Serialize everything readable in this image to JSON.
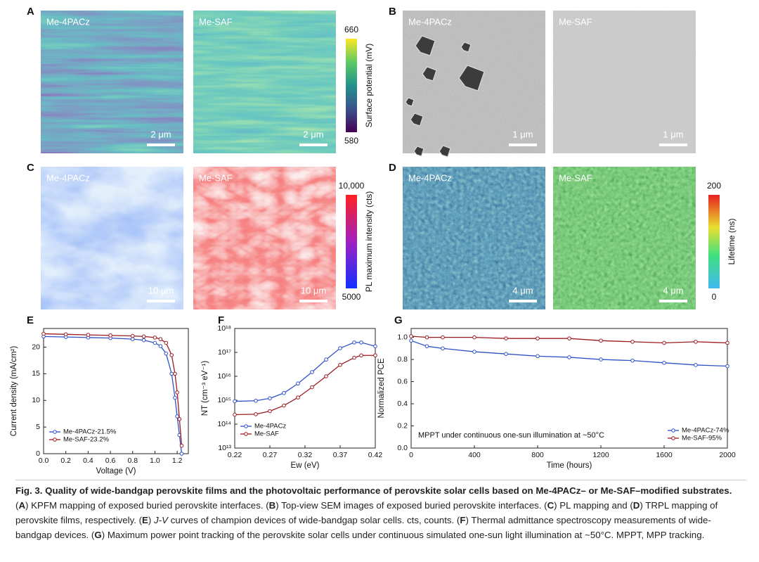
{
  "panels": [
    {
      "letter": "A",
      "images": [
        {
          "label": "Me-4PACz",
          "scale": "2 μm"
        },
        {
          "label": "Me-SAF",
          "scale": "2 μm"
        }
      ],
      "colorbar": {
        "top": "660",
        "bottom": "580",
        "title": "Surface potential (mV)"
      }
    },
    {
      "letter": "B",
      "images": [
        {
          "label": "Me-4PACz",
          "scale": "1 μm"
        },
        {
          "label": "Me-SAF",
          "scale": "1 μm"
        }
      ]
    },
    {
      "letter": "C",
      "images": [
        {
          "label": "Me-4PACz",
          "scale": "10 μm"
        },
        {
          "label": "Me-SAF",
          "scale": "10 μm"
        }
      ],
      "colorbar": {
        "top": "10,000",
        "bottom": "5000",
        "title": "PL maximum intensity (cts)"
      }
    },
    {
      "letter": "D",
      "images": [
        {
          "label": "Me-4PACz",
          "scale": "4 μm"
        },
        {
          "label": "Me-SAF",
          "scale": "4 μm"
        }
      ],
      "colorbar": {
        "top": "200",
        "bottom": "0",
        "title": "Lifetime (ns)"
      }
    }
  ],
  "chart_data": [
    {
      "type": "line",
      "label": "E",
      "x_label": "Voltage (V)",
      "y_label": "Current density (mA/cm²)",
      "x": [
        0,
        0.2,
        0.4,
        0.6,
        0.8,
        0.9,
        1.0,
        1.05,
        1.1,
        1.15,
        1.18,
        1.2,
        1.22,
        1.24
      ],
      "series": [
        {
          "name": "Me-4PACz-21.5%",
          "color": "#2f52c8",
          "values": [
            22.0,
            21.9,
            21.8,
            21.7,
            21.5,
            21.3,
            20.8,
            20.2,
            18.8,
            15,
            10.5,
            7,
            3.5,
            0
          ]
        },
        {
          "name": "Me-SAF-23.2%",
          "color": "#9b1b22",
          "values": [
            22.5,
            22.4,
            22.3,
            22.2,
            22.1,
            22,
            21.8,
            21.5,
            20.8,
            18.5,
            15,
            11.5,
            6.5,
            1.5
          ]
        }
      ],
      "xlim": [
        0,
        1.3
      ],
      "xticks": [
        {
          "value": 0,
          "label": "0.0"
        },
        0.2,
        0.4,
        0.6,
        0.8,
        {
          "value": 1,
          "label": "1.0"
        },
        1.2
      ],
      "ylim": [
        0,
        23.5
      ],
      "yticks": [
        0,
        5,
        10,
        15,
        20
      ],
      "legend": "lower left"
    },
    {
      "type": "line",
      "label": "F",
      "x_label": "Ew (eV)",
      "y_label": "NT (cm⁻³ eV⁻¹)",
      "log_y": true,
      "x": [
        0.22,
        0.25,
        0.27,
        0.29,
        0.31,
        0.33,
        0.35,
        0.37,
        0.39,
        0.4,
        0.42
      ],
      "series": [
        {
          "name": "Me-4PACz",
          "color": "#2f52c8",
          "values": [
            900000000000000.0,
            950000000000000.0,
            1200000000000000.0,
            2000000000000000.0,
            5000000000000000.0,
            1.5e+16,
            5e+16,
            1.5e+17,
            2.6e+17,
            2.6e+17,
            1.8e+17
          ]
        },
        {
          "name": "Me-SAF",
          "color": "#9b1b22",
          "values": [
            250000000000000.0,
            260000000000000.0,
            350000000000000.0,
            600000000000000.0,
            1300000000000000.0,
            3500000000000000.0,
            1e+16,
            3e+16,
            6e+16,
            7.5e+16,
            7.5e+16
          ]
        }
      ],
      "xlim": [
        0.22,
        0.42
      ],
      "xticks": [
        0.22,
        0.27,
        0.32,
        0.37,
        0.42
      ],
      "ylim": [
        10000000000000.0,
        1e+18
      ],
      "yticks": [
        {
          "value": 10000000000000.0,
          "label": "10¹³"
        },
        {
          "value": 100000000000000.0,
          "label": "10¹⁴"
        },
        {
          "value": 1000000000000000.0,
          "label": "10¹⁵"
        },
        {
          "value": 1e+16,
          "label": "10¹⁶"
        },
        {
          "value": 1e+17,
          "label": "10¹⁷"
        },
        {
          "value": 1e+18,
          "label": "10¹⁸"
        }
      ],
      "legend": "lower left"
    },
    {
      "type": "line",
      "label": "G",
      "x_label": "Time (hours)",
      "y_label": "Normalized PCE",
      "annotation": "MPPT  under continuous one-sun illumination at ~50°C",
      "x": [
        0,
        100,
        200,
        400,
        600,
        800,
        1000,
        1200,
        1400,
        1600,
        1800,
        2000
      ],
      "series": [
        {
          "name": "Me-4PACz-74%",
          "color": "#2f52c8",
          "values": [
            0.97,
            0.92,
            0.9,
            0.87,
            0.85,
            0.83,
            0.82,
            0.8,
            0.79,
            0.77,
            0.75,
            0.74
          ]
        },
        {
          "name": "Me-SAF-95%",
          "color": "#9b1b22",
          "values": [
            1.01,
            1.0,
            1.0,
            1.0,
            0.99,
            0.99,
            0.99,
            0.97,
            0.96,
            0.95,
            0.96,
            0.95
          ]
        }
      ],
      "xlim": [
        0,
        2000
      ],
      "xticks": [
        0,
        400,
        800,
        1200,
        1600,
        2000
      ],
      "ylim": [
        0,
        1.08
      ],
      "yticks": [
        {
          "value": 0,
          "label": "0.0"
        },
        0.2,
        0.4,
        0.6,
        0.8,
        {
          "value": 1,
          "label": "1.0"
        }
      ],
      "legend": "lower right"
    }
  ],
  "caption": {
    "title": "Fig. 3. Quality of wide-bandgap perovskite films and the photovoltaic performance of perovskite solar cells based on Me-4PACz– or Me-SAF–modified substrates.",
    "runs": [
      "(",
      "A",
      ") KPFM mapping of exposed buried perovskite interfaces. (",
      "B",
      ") Top-view SEM images of exposed buried perovskite interfaces. (",
      "C",
      ") PL mapping and (",
      "D",
      ") TRPL mapping of perovskite films, respectively. (",
      "E",
      ") ",
      "J-V",
      " curves of champion devices of wide-bandgap solar cells. cts, counts. (",
      "F",
      ") Thermal admittance spectroscopy measurements of wide-bandgap devices. (",
      "G",
      ") Maximum power point tracking of the perovskite solar cells under continuous simulated one-sun light illumination at ~50°C. MPPT, MPP tracking."
    ]
  }
}
